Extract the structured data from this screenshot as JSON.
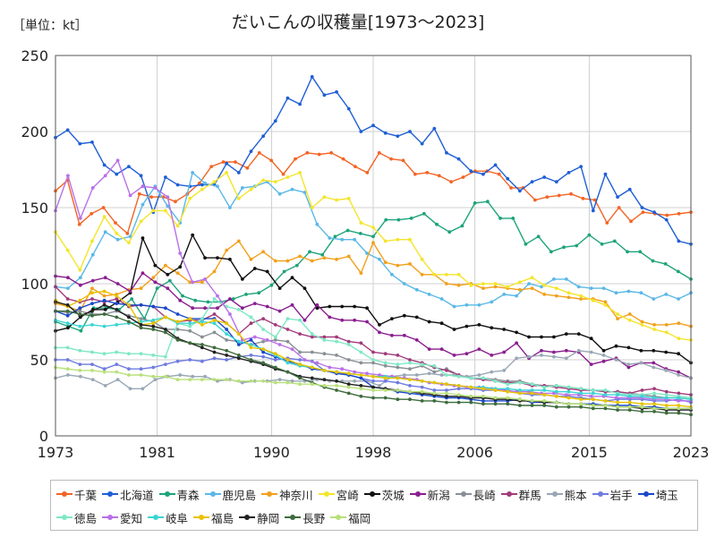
{
  "unit_label": "［単位：kt］",
  "chart_data": {
    "type": "line",
    "title": "だいこんの収穫量[1973～2023]",
    "xlabel": "",
    "ylabel": "",
    "xlim": [
      1973,
      2023
    ],
    "ylim": [
      0,
      250
    ],
    "x_ticks": [
      1973,
      1981,
      1990,
      1998,
      2006,
      2015,
      2023
    ],
    "y_ticks": [
      0,
      50,
      100,
      150,
      200,
      250
    ],
    "grid": true,
    "legend_position": "bottom",
    "series": [
      {
        "name": "千葉",
        "color": "#f36424",
        "values": [
          161,
          168,
          139,
          146,
          150,
          140,
          133,
          159,
          157,
          157,
          154,
          159,
          166,
          177,
          180,
          180,
          176,
          186,
          181,
          172,
          182,
          186,
          185,
          186,
          182,
          177,
          173,
          186,
          182,
          181,
          172,
          173,
          171,
          167,
          170,
          174,
          174,
          172,
          163,
          163,
          155,
          157,
          158,
          159,
          156,
          155,
          140,
          150,
          141,
          147,
          146,
          145,
          146,
          147
        ]
      },
      {
        "name": "北海道",
        "color": "#1f5ed6",
        "values": [
          196,
          201,
          192,
          193,
          178,
          172,
          177,
          171,
          147,
          170,
          165,
          164,
          165,
          165,
          179,
          173,
          187,
          197,
          207,
          222,
          218,
          236,
          224,
          226,
          215,
          200,
          204,
          199,
          197,
          200,
          192,
          202,
          186,
          182,
          174,
          172,
          178,
          169,
          161,
          167,
          170,
          167,
          173,
          177,
          148,
          172,
          157,
          162,
          150,
          147,
          142,
          128,
          126
        ]
      },
      {
        "name": "青森",
        "color": "#1da37a",
        "values": [
          75,
          72,
          69,
          84,
          84,
          83,
          90,
          77,
          97,
          102,
          92,
          89,
          88,
          88,
          90,
          93,
          94,
          99,
          108,
          112,
          121,
          119,
          131,
          135,
          133,
          131,
          142,
          142,
          143,
          146,
          139,
          134,
          138,
          153,
          154,
          143,
          143,
          126,
          131,
          121,
          124,
          125,
          132,
          126,
          128,
          121,
          121,
          115,
          113,
          108,
          103
        ]
      },
      {
        "name": "鹿児島",
        "color": "#5ab8e8",
        "values": [
          98,
          97,
          104,
          119,
          134,
          129,
          131,
          152,
          164,
          151,
          140,
          173,
          166,
          164,
          150,
          163,
          164,
          167,
          159,
          162,
          160,
          139,
          130,
          129,
          129,
          120,
          116,
          106,
          100,
          96,
          93,
          90,
          85,
          86,
          86,
          88,
          93,
          92,
          100,
          98,
          103,
          103,
          98,
          97,
          97,
          94,
          95,
          94,
          90,
          93,
          90,
          94
        ]
      },
      {
        "name": "神奈川",
        "color": "#f2a01c",
        "values": [
          87,
          85,
          82,
          97,
          92,
          93,
          96,
          97,
          104,
          112,
          107,
          101,
          101,
          108,
          122,
          128,
          116,
          121,
          115,
          115,
          118,
          115,
          117,
          116,
          118,
          107,
          127,
          114,
          112,
          113,
          106,
          106,
          100,
          99,
          100,
          97,
          98,
          97,
          96,
          97,
          93,
          92,
          91,
          90,
          90,
          88,
          77,
          80,
          75,
          73,
          73,
          74,
          72
        ]
      },
      {
        "name": "宮崎",
        "color": "#f4e52c",
        "values": [
          134,
          122,
          109,
          128,
          144,
          133,
          127,
          141,
          148,
          148,
          138,
          156,
          162,
          167,
          173,
          156,
          162,
          168,
          167,
          170,
          173,
          150,
          157,
          155,
          156,
          140,
          137,
          128,
          129,
          129,
          116,
          106,
          106,
          106,
          99,
          100,
          100,
          98,
          101,
          104,
          99,
          97,
          94,
          92,
          89,
          86,
          80,
          76,
          73,
          70,
          68,
          64,
          63
        ]
      },
      {
        "name": "茨城",
        "color": "#111111",
        "values": [
          69,
          71,
          78,
          83,
          83,
          88,
          94,
          130,
          112,
          106,
          111,
          132,
          117,
          117,
          116,
          103,
          110,
          108,
          97,
          104,
          97,
          84,
          85,
          85,
          85,
          84,
          73,
          77,
          79,
          78,
          75,
          74,
          70,
          72,
          73,
          71,
          70,
          68,
          65,
          65,
          65,
          67,
          67,
          64,
          56,
          59,
          58,
          56,
          56,
          55,
          54,
          48
        ]
      },
      {
        "name": "新潟",
        "color": "#8a1e8f",
        "values": [
          105,
          104,
          99,
          102,
          104,
          100,
          95,
          107,
          101,
          97,
          89,
          84,
          84,
          84,
          90,
          84,
          87,
          85,
          82,
          86,
          76,
          86,
          78,
          76,
          76,
          75,
          68,
          66,
          66,
          63,
          57,
          57,
          53,
          54,
          57,
          53,
          55,
          61,
          51,
          56,
          55,
          56,
          55,
          47,
          49,
          51,
          45,
          48,
          48,
          44,
          42,
          38
        ]
      },
      {
        "name": "長崎",
        "color": "#8a8f96",
        "values": [
          82,
          81,
          82,
          80,
          80,
          82,
          79,
          77,
          75,
          70,
          70,
          69,
          65,
          68,
          63,
          62,
          60,
          62,
          63,
          62,
          55,
          55,
          54,
          53,
          50,
          48,
          48,
          46,
          45,
          44,
          46,
          42,
          44,
          40,
          38,
          38,
          37,
          36,
          36,
          34,
          33,
          33,
          32,
          31,
          30,
          29,
          29,
          28,
          27,
          26,
          25,
          25,
          24
        ]
      },
      {
        "name": "群馬",
        "color": "#a23a7c",
        "values": [
          98,
          90,
          88,
          90,
          88,
          90,
          85,
          86,
          85,
          78,
          75,
          76,
          76,
          80,
          74,
          67,
          74,
          77,
          73,
          70,
          67,
          65,
          65,
          65,
          62,
          61,
          55,
          54,
          53,
          50,
          48,
          45,
          43,
          40,
          38,
          37,
          36,
          35,
          35,
          33,
          33,
          32,
          31,
          30,
          30,
          29,
          29,
          28,
          30,
          31,
          29,
          28,
          27
        ]
      },
      {
        "name": "熊本",
        "color": "#9aa7b5",
        "values": [
          38,
          40,
          39,
          37,
          33,
          37,
          31,
          31,
          37,
          39,
          40,
          39,
          39,
          36,
          37,
          35,
          36,
          36,
          37,
          36,
          36,
          37,
          36,
          36,
          36,
          36,
          33,
          39,
          40,
          40,
          41,
          40,
          40,
          39,
          40,
          42,
          43,
          51,
          52,
          53,
          52,
          51,
          56,
          55,
          53,
          50,
          47,
          48,
          45,
          43,
          40,
          38
        ]
      },
      {
        "name": "岩手",
        "color": "#6f7be0",
        "values": [
          50,
          50,
          47,
          47,
          44,
          47,
          44,
          44,
          45,
          47,
          49,
          50,
          49,
          51,
          50,
          52,
          53,
          52,
          50,
          51,
          50,
          49,
          43,
          42,
          40,
          38,
          36,
          36,
          35,
          33,
          32,
          30,
          30,
          31,
          31,
          30,
          30,
          30,
          28,
          27,
          27,
          26,
          26,
          25,
          24,
          23,
          24,
          24,
          24,
          23,
          23,
          24,
          22
        ]
      },
      {
        "name": "埼玉",
        "color": "#1848c8",
        "values": [
          82,
          79,
          84,
          87,
          89,
          87,
          86,
          86,
          85,
          84,
          80,
          77,
          77,
          77,
          70,
          60,
          63,
          55,
          52,
          49,
          47,
          44,
          43,
          41,
          40,
          38,
          32,
          31,
          29,
          28,
          27,
          26,
          25,
          25,
          24,
          23,
          23,
          23,
          24,
          22,
          22,
          22,
          21,
          21,
          21,
          20,
          20,
          20,
          19,
          19,
          18,
          18,
          18
        ]
      },
      {
        "name": "徳島",
        "color": "#7ee8c4",
        "values": [
          58,
          58,
          56,
          55,
          54,
          55,
          54,
          54,
          53,
          52,
          74,
          72,
          77,
          90,
          85,
          83,
          78,
          70,
          65,
          77,
          76,
          67,
          63,
          62,
          60,
          55,
          50,
          48,
          47,
          48,
          47,
          46,
          40,
          39,
          38,
          38,
          36,
          34,
          35,
          34,
          32,
          33,
          32,
          31,
          30,
          30,
          28,
          27,
          27,
          28,
          27,
          26,
          25
        ]
      },
      {
        "name": "愛知",
        "color": "#b970e8",
        "values": [
          148,
          171,
          143,
          163,
          171,
          181,
          158,
          164,
          163,
          157,
          120,
          101,
          103,
          92,
          80,
          63,
          65,
          63,
          60,
          57,
          50,
          48,
          45,
          44,
          42,
          41,
          40,
          39,
          38,
          37,
          35,
          34,
          33,
          32,
          32,
          31,
          30,
          29,
          29,
          28,
          28,
          27,
          27,
          26,
          26,
          25,
          25,
          25,
          24,
          24,
          23,
          23
        ]
      },
      {
        "name": "岐阜",
        "color": "#3bd4d4",
        "values": [
          76,
          74,
          72,
          73,
          72,
          73,
          74,
          75,
          76,
          78,
          74,
          74,
          75,
          74,
          67,
          62,
          60,
          57,
          53,
          48,
          46,
          45,
          43,
          42,
          41,
          40,
          39,
          39,
          38,
          37,
          36,
          35,
          34,
          33,
          32,
          32,
          31,
          31,
          30,
          30,
          30,
          29,
          29,
          28,
          28,
          27,
          27,
          26,
          26,
          25,
          25,
          25,
          24
        ]
      },
      {
        "name": "福島",
        "color": "#e9c200",
        "values": [
          89,
          85,
          89,
          94,
          95,
          92,
          86,
          73,
          74,
          78,
          75,
          77,
          73,
          76,
          74,
          67,
          58,
          57,
          54,
          50,
          47,
          45,
          43,
          42,
          41,
          40,
          39,
          38,
          38,
          37,
          36,
          35,
          34,
          33,
          32,
          31,
          30,
          29,
          28,
          28,
          27,
          26,
          25,
          24,
          24,
          23,
          22,
          22,
          21,
          21,
          20,
          20,
          19
        ]
      },
      {
        "name": "静岡",
        "color": "#222222",
        "values": [
          88,
          86,
          79,
          82,
          86,
          83,
          78,
          73,
          72,
          70,
          64,
          61,
          58,
          55,
          53,
          51,
          49,
          47,
          44,
          42,
          39,
          38,
          37,
          36,
          34,
          33,
          32,
          31,
          30,
          29,
          28,
          27,
          26,
          26,
          25,
          25,
          24,
          24,
          23,
          23,
          22,
          22,
          21,
          21,
          20,
          20,
          19,
          19,
          18,
          18,
          17,
          17,
          17
        ]
      },
      {
        "name": "長野",
        "color": "#3d6b3d",
        "values": [
          82,
          82,
          80,
          79,
          80,
          78,
          75,
          71,
          70,
          68,
          63,
          61,
          60,
          58,
          56,
          53,
          50,
          48,
          45,
          42,
          38,
          35,
          32,
          30,
          28,
          26,
          25,
          25,
          24,
          24,
          23,
          23,
          22,
          22,
          22,
          21,
          21,
          21,
          20,
          20,
          20,
          19,
          19,
          19,
          18,
          18,
          17,
          17,
          16,
          16,
          15,
          15,
          14
        ]
      },
      {
        "name": "福岡",
        "color": "#b8e07a",
        "values": [
          45,
          44,
          43,
          43,
          42,
          42,
          40,
          40,
          39,
          39,
          37,
          37,
          37,
          37,
          37,
          36,
          36,
          36,
          35,
          35,
          34,
          34,
          33,
          33,
          32,
          31,
          30,
          30,
          30,
          29,
          29,
          28,
          28,
          27,
          26,
          26,
          25,
          25,
          24,
          23,
          23,
          22,
          21,
          21,
          20,
          20,
          19,
          19,
          19,
          18,
          18,
          18,
          18
        ]
      }
    ]
  }
}
